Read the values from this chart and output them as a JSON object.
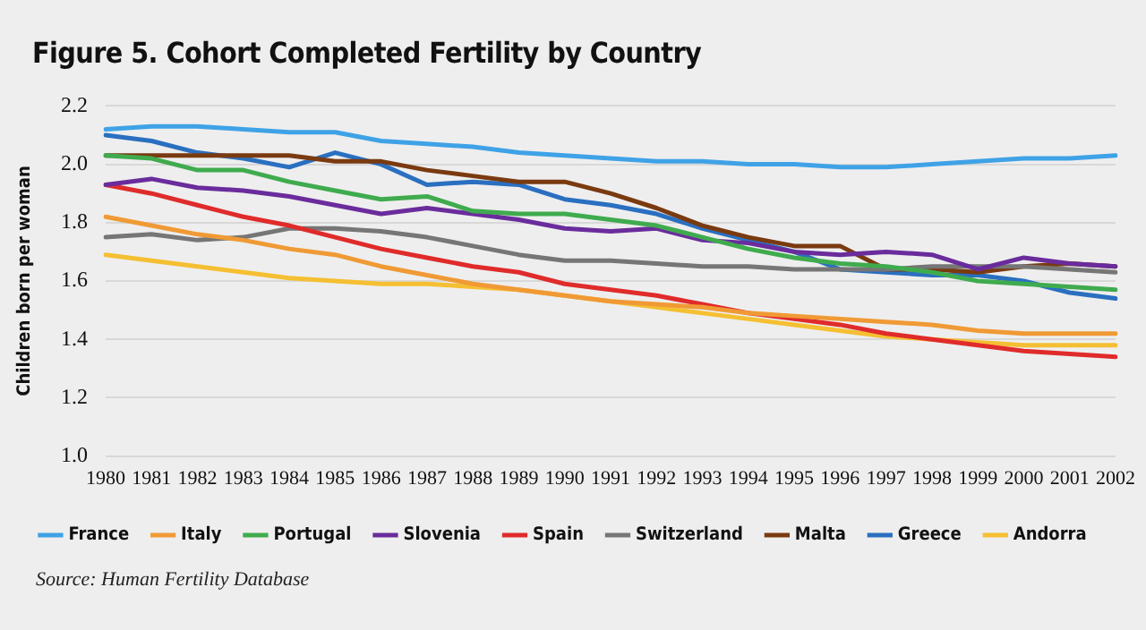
{
  "chart_data": {
    "type": "line",
    "title": "Figure 5. Cohort Completed Fertility by Country",
    "ylabel": "Children born per woman",
    "annotations": [
      "Source: Human Fertility Database"
    ],
    "categories": [
      "1980",
      "1981",
      "1982",
      "1983",
      "1984",
      "1985",
      "1986",
      "1987",
      "1988",
      "1989",
      "1990",
      "1991",
      "1992",
      "1993",
      "1994",
      "1995",
      "1996",
      "1997",
      "1998",
      "1999",
      "2000",
      "2001",
      "2002"
    ],
    "ylim": [
      1.0,
      2.2
    ],
    "yticks": [
      {
        "value": 1.0,
        "label": "1.0"
      },
      {
        "value": 1.2,
        "label": "1.2"
      },
      {
        "value": 1.4,
        "label": "1.4"
      },
      {
        "value": 1.6,
        "label": "1.6"
      },
      {
        "value": 1.8,
        "label": "1.8"
      },
      {
        "value": 2.0,
        "label": "2.0"
      },
      {
        "value": 2.2,
        "label": "2.2"
      }
    ],
    "grid": "y",
    "legend": "bottom",
    "marker": "none",
    "line_style": "solid",
    "series": [
      {
        "name": "France",
        "color": "#3fa2e6",
        "values": [
          2.12,
          2.13,
          2.13,
          2.12,
          2.11,
          2.11,
          2.08,
          2.07,
          2.06,
          2.04,
          2.03,
          2.02,
          2.01,
          2.01,
          2.0,
          2.0,
          1.99,
          1.99,
          2.0,
          2.01,
          2.02,
          2.02,
          2.03
        ]
      },
      {
        "name": "Italy",
        "color": "#f09a35",
        "values": [
          1.82,
          1.79,
          1.76,
          1.74,
          1.71,
          1.69,
          1.65,
          1.62,
          1.59,
          1.57,
          1.55,
          1.53,
          1.52,
          1.51,
          1.49,
          1.48,
          1.47,
          1.46,
          1.45,
          1.43,
          1.42,
          1.42,
          1.42
        ]
      },
      {
        "name": "Portugal",
        "color": "#3fab4e",
        "values": [
          2.03,
          2.02,
          1.98,
          1.98,
          1.94,
          1.91,
          1.88,
          1.89,
          1.84,
          1.83,
          1.83,
          1.81,
          1.79,
          1.75,
          1.71,
          1.68,
          1.66,
          1.65,
          1.63,
          1.6,
          1.59,
          1.58,
          1.57
        ]
      },
      {
        "name": "Slovenia",
        "color": "#6a2c9c",
        "values": [
          1.93,
          1.95,
          1.92,
          1.91,
          1.89,
          1.86,
          1.83,
          1.85,
          1.83,
          1.81,
          1.78,
          1.77,
          1.78,
          1.74,
          1.73,
          1.7,
          1.69,
          1.7,
          1.69,
          1.64,
          1.68,
          1.66,
          1.65
        ]
      },
      {
        "name": "Spain",
        "color": "#e02b2b",
        "values": [
          1.93,
          1.9,
          1.86,
          1.82,
          1.79,
          1.75,
          1.71,
          1.68,
          1.65,
          1.63,
          1.59,
          1.57,
          1.55,
          1.52,
          1.49,
          1.47,
          1.45,
          1.42,
          1.4,
          1.38,
          1.36,
          1.35,
          1.34
        ]
      },
      {
        "name": "Switzerland",
        "color": "#767676",
        "values": [
          1.75,
          1.76,
          1.74,
          1.75,
          1.78,
          1.78,
          1.77,
          1.75,
          1.72,
          1.69,
          1.67,
          1.67,
          1.66,
          1.65,
          1.65,
          1.64,
          1.64,
          1.64,
          1.65,
          1.65,
          1.65,
          1.64,
          1.63
        ]
      },
      {
        "name": "Malta",
        "color": "#7a3a10",
        "values": [
          2.03,
          2.03,
          2.03,
          2.03,
          2.03,
          2.01,
          2.01,
          1.98,
          1.96,
          1.94,
          1.94,
          1.9,
          1.85,
          1.79,
          1.75,
          1.72,
          1.72,
          1.64,
          1.64,
          1.63,
          1.65,
          1.66,
          1.65
        ]
      },
      {
        "name": "Greece",
        "color": "#2a6fc0",
        "values": [
          2.1,
          2.08,
          2.04,
          2.02,
          1.99,
          2.04,
          2.0,
          1.93,
          1.94,
          1.93,
          1.88,
          1.86,
          1.83,
          1.78,
          1.74,
          1.7,
          1.64,
          1.63,
          1.62,
          1.62,
          1.6,
          1.56,
          1.54
        ]
      },
      {
        "name": "Andorra",
        "color": "#f5bf32",
        "values": [
          1.69,
          1.67,
          1.65,
          1.63,
          1.61,
          1.6,
          1.59,
          1.59,
          1.58,
          1.57,
          1.55,
          1.53,
          1.51,
          1.49,
          1.47,
          1.45,
          1.43,
          1.41,
          1.4,
          1.39,
          1.38,
          1.38,
          1.38
        ]
      }
    ]
  }
}
